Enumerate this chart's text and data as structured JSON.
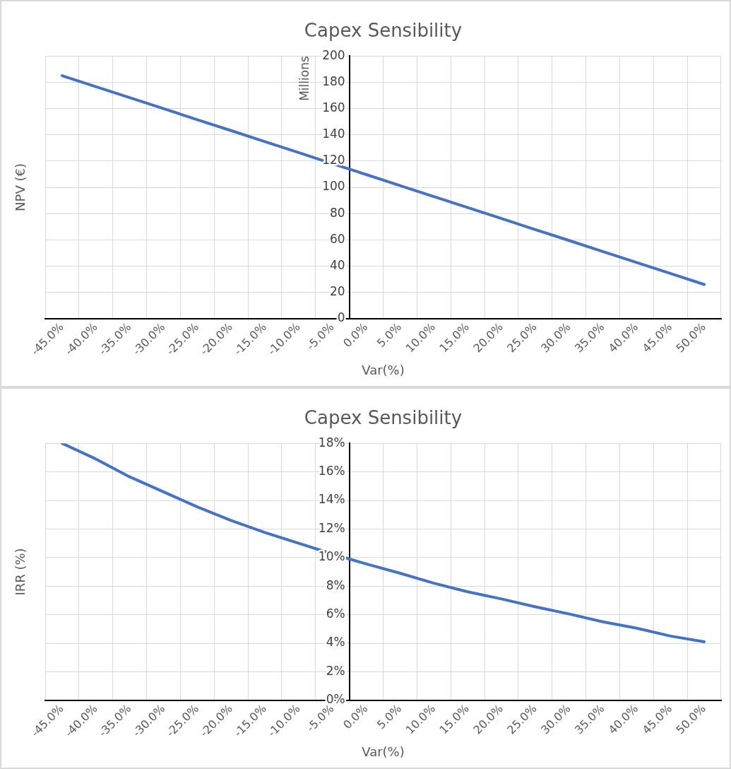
{
  "chart_data": [
    {
      "type": "line",
      "title": "Capex Sensibility",
      "xlabel": "Var(%)",
      "ylabel": "NPV (€)",
      "annotations": [
        "Millions"
      ],
      "categories": [
        "-45.0%",
        "-40.0%",
        "-35.0%",
        "-30.0%",
        "-25.0%",
        "-20.0%",
        "-15.0%",
        "-10.0%",
        "-5.0%",
        "0.0%",
        "5.0%",
        "10.0%",
        "15.0%",
        "20.0%",
        "25.0%",
        "30.0%",
        "35.0%",
        "40.0%",
        "45.0%",
        "50.0%"
      ],
      "series": [
        {
          "color": "#4472c4",
          "values": [
            185,
            176.6,
            168.3,
            159.9,
            151.5,
            143.2,
            134.8,
            126.4,
            118,
            109.7,
            101.3,
            92.9,
            84.6,
            76.2,
            67.8,
            59.5,
            51.1,
            42.7,
            34.4,
            26
          ]
        }
      ],
      "ylim": [
        0,
        200
      ],
      "yticks": [
        0,
        20,
        40,
        60,
        80,
        100,
        120,
        140,
        160,
        180,
        200
      ],
      "grid": true,
      "legend": false,
      "marker": "none",
      "line_style": "solid"
    },
    {
      "type": "line",
      "title": "Capex Sensibility",
      "xlabel": "Var(%)",
      "ylabel": "IRR (%)",
      "categories": [
        "-45.0%",
        "-40.0%",
        "-35.0%",
        "-30.0%",
        "-25.0%",
        "-20.0%",
        "-15.0%",
        "-10.0%",
        "-5.0%",
        "0.0%",
        "5.0%",
        "10.0%",
        "15.0%",
        "20.0%",
        "25.0%",
        "30.0%",
        "35.0%",
        "40.0%",
        "45.0%",
        "50.0%"
      ],
      "series": [
        {
          "color": "#4472c4",
          "values": [
            18,
            16.9,
            15.65,
            14.6,
            13.55,
            12.6,
            11.75,
            11,
            10.25,
            9.55,
            8.9,
            8.2,
            7.6,
            7.1,
            6.55,
            6.05,
            5.5,
            5.05,
            4.5,
            4.1
          ]
        }
      ],
      "ylim": [
        0,
        18
      ],
      "yticks": [
        {
          "value": 0,
          "label": "0%"
        },
        {
          "value": 2,
          "label": "2%"
        },
        {
          "value": 4,
          "label": "4%"
        },
        {
          "value": 6,
          "label": "6%"
        },
        {
          "value": 8,
          "label": "8%"
        },
        {
          "value": 10,
          "label": "10%"
        },
        {
          "value": 12,
          "label": "12%"
        },
        {
          "value": 14,
          "label": "14%"
        },
        {
          "value": 16,
          "label": "16%"
        },
        {
          "value": 18,
          "label": "18%"
        }
      ],
      "grid": true,
      "legend": false,
      "marker": "none",
      "line_style": "solid"
    }
  ]
}
